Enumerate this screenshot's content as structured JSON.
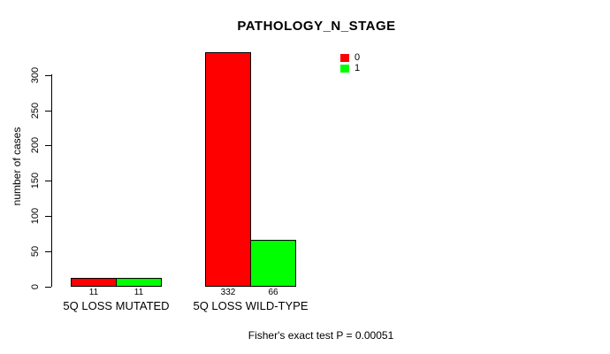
{
  "title": "PATHOLOGY_N_STAGE",
  "y_axis": {
    "label": "number of cases"
  },
  "footer": "Fisher's exact test P = 0.00051",
  "legend": {
    "items": [
      {
        "label": "0",
        "color": "#FF0000"
      },
      {
        "label": "1",
        "color": "#00FF00"
      }
    ]
  },
  "chart_data": {
    "type": "bar",
    "title": "PATHOLOGY_N_STAGE",
    "xlabel": "",
    "ylabel": "number of cases",
    "categories": [
      "5Q LOSS MUTATED",
      "5Q LOSS WILD-TYPE"
    ],
    "series": [
      {
        "name": "0",
        "color": "#FF0000",
        "values": [
          11,
          332
        ]
      },
      {
        "name": "1",
        "color": "#00FF00",
        "values": [
          11,
          66
        ]
      }
    ],
    "bar_value_labels": [
      [
        "11",
        "11"
      ],
      [
        "332",
        "66"
      ]
    ],
    "yticks": [
      0,
      50,
      100,
      150,
      200,
      250,
      300
    ],
    "ylim": [
      0,
      335
    ],
    "grid": false,
    "legend_position": "top-right-inside",
    "annotation": "Fisher's exact test P = 0.00051"
  }
}
